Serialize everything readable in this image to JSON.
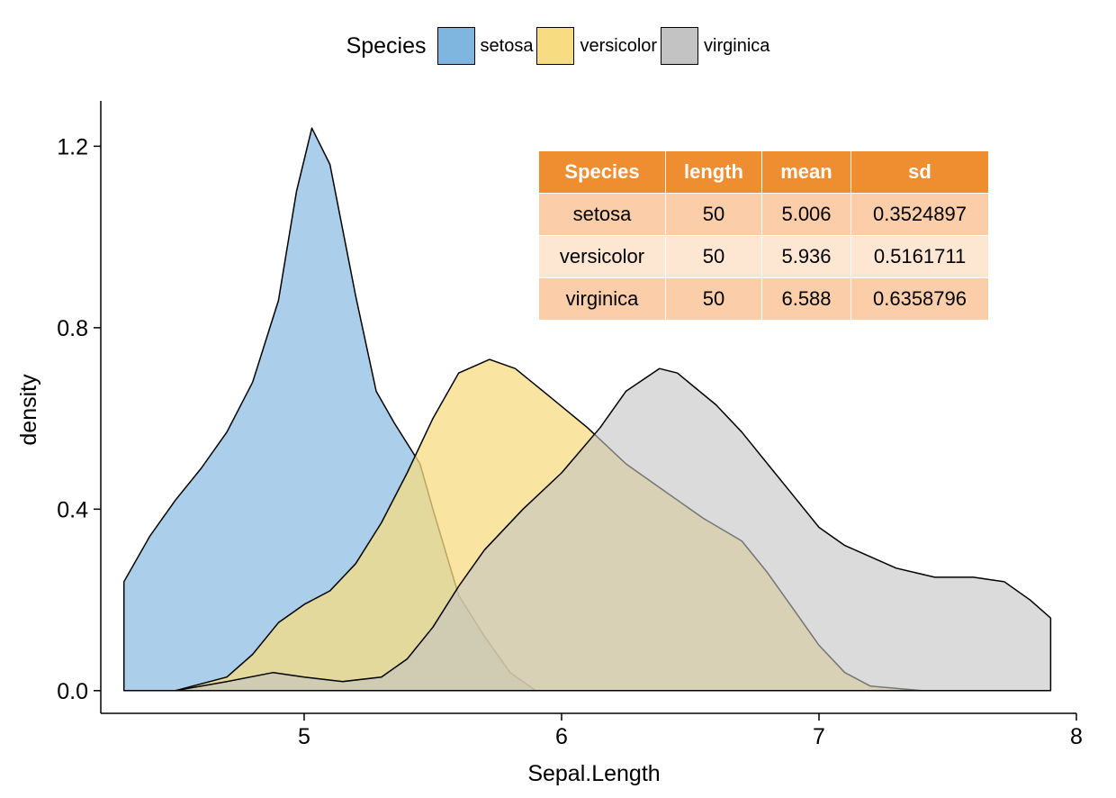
{
  "legend": {
    "title": "Species",
    "items": [
      {
        "label": "setosa",
        "color": "#7EB6E0"
      },
      {
        "label": "versicolor",
        "color": "#F7DC82"
      },
      {
        "label": "virginica",
        "color": "#C3C3C3"
      }
    ]
  },
  "table": {
    "headers": [
      "Species",
      "length",
      "mean",
      "sd"
    ],
    "rows": [
      [
        "setosa",
        "50",
        "5.006",
        "0.3524897"
      ],
      [
        "versicolor",
        "50",
        "5.936",
        "0.5161711"
      ],
      [
        "virginica",
        "50",
        "6.588",
        "0.6358796"
      ]
    ],
    "header_color": "#EE8E30",
    "row_colors": [
      "#FBCDA8",
      "#FDE6D2"
    ]
  },
  "chart_data": {
    "type": "area",
    "title": "",
    "xlabel": "Sepal.Length",
    "ylabel": "density",
    "xlim": [
      4.21,
      8.0
    ],
    "ylim": [
      -0.05,
      1.3
    ],
    "xticks": [
      5,
      6,
      7,
      8
    ],
    "yticks": [
      0.0,
      0.4,
      0.8,
      1.2
    ],
    "ytick_labels": [
      "0.0",
      "0.4",
      "0.8",
      "1.2"
    ],
    "grid": false,
    "legend_position": "top",
    "series": [
      {
        "name": "setosa",
        "color": "#7EB6E0",
        "opacity": 0.65,
        "points": [
          [
            4.3,
            0.24
          ],
          [
            4.4,
            0.34
          ],
          [
            4.5,
            0.42
          ],
          [
            4.6,
            0.49
          ],
          [
            4.7,
            0.57
          ],
          [
            4.8,
            0.68
          ],
          [
            4.9,
            0.86
          ],
          [
            4.97,
            1.1
          ],
          [
            5.03,
            1.24
          ],
          [
            5.1,
            1.16
          ],
          [
            5.2,
            0.87
          ],
          [
            5.28,
            0.66
          ],
          [
            5.35,
            0.59
          ],
          [
            5.45,
            0.5
          ],
          [
            5.5,
            0.4
          ],
          [
            5.6,
            0.21
          ],
          [
            5.7,
            0.12
          ],
          [
            5.8,
            0.04
          ],
          [
            5.9,
            0.0
          ]
        ]
      },
      {
        "name": "versicolor",
        "color": "#F7DC82",
        "opacity": 0.75,
        "points": [
          [
            4.5,
            0.0
          ],
          [
            4.7,
            0.03
          ],
          [
            4.8,
            0.08
          ],
          [
            4.9,
            0.15
          ],
          [
            5.0,
            0.19
          ],
          [
            5.1,
            0.22
          ],
          [
            5.2,
            0.28
          ],
          [
            5.3,
            0.37
          ],
          [
            5.4,
            0.48
          ],
          [
            5.5,
            0.6
          ],
          [
            5.6,
            0.7
          ],
          [
            5.72,
            0.73
          ],
          [
            5.82,
            0.71
          ],
          [
            5.95,
            0.65
          ],
          [
            6.1,
            0.58
          ],
          [
            6.25,
            0.5
          ],
          [
            6.4,
            0.44
          ],
          [
            6.55,
            0.38
          ],
          [
            6.7,
            0.33
          ],
          [
            6.8,
            0.26
          ],
          [
            6.9,
            0.18
          ],
          [
            7.0,
            0.1
          ],
          [
            7.1,
            0.04
          ],
          [
            7.2,
            0.01
          ],
          [
            7.4,
            0.0
          ]
        ]
      },
      {
        "name": "virginica",
        "color": "#C3C3C3",
        "opacity": 0.6,
        "points": [
          [
            4.5,
            0.0
          ],
          [
            4.7,
            0.02
          ],
          [
            4.88,
            0.04
          ],
          [
            5.0,
            0.03
          ],
          [
            5.15,
            0.02
          ],
          [
            5.3,
            0.03
          ],
          [
            5.4,
            0.07
          ],
          [
            5.5,
            0.14
          ],
          [
            5.6,
            0.23
          ],
          [
            5.7,
            0.31
          ],
          [
            5.85,
            0.4
          ],
          [
            6.0,
            0.48
          ],
          [
            6.15,
            0.58
          ],
          [
            6.25,
            0.66
          ],
          [
            6.38,
            0.71
          ],
          [
            6.45,
            0.7
          ],
          [
            6.6,
            0.63
          ],
          [
            6.7,
            0.57
          ],
          [
            6.8,
            0.5
          ],
          [
            6.9,
            0.43
          ],
          [
            7.0,
            0.36
          ],
          [
            7.1,
            0.32
          ],
          [
            7.3,
            0.27
          ],
          [
            7.45,
            0.25
          ],
          [
            7.6,
            0.25
          ],
          [
            7.72,
            0.24
          ],
          [
            7.82,
            0.2
          ],
          [
            7.9,
            0.16
          ]
        ]
      }
    ]
  }
}
